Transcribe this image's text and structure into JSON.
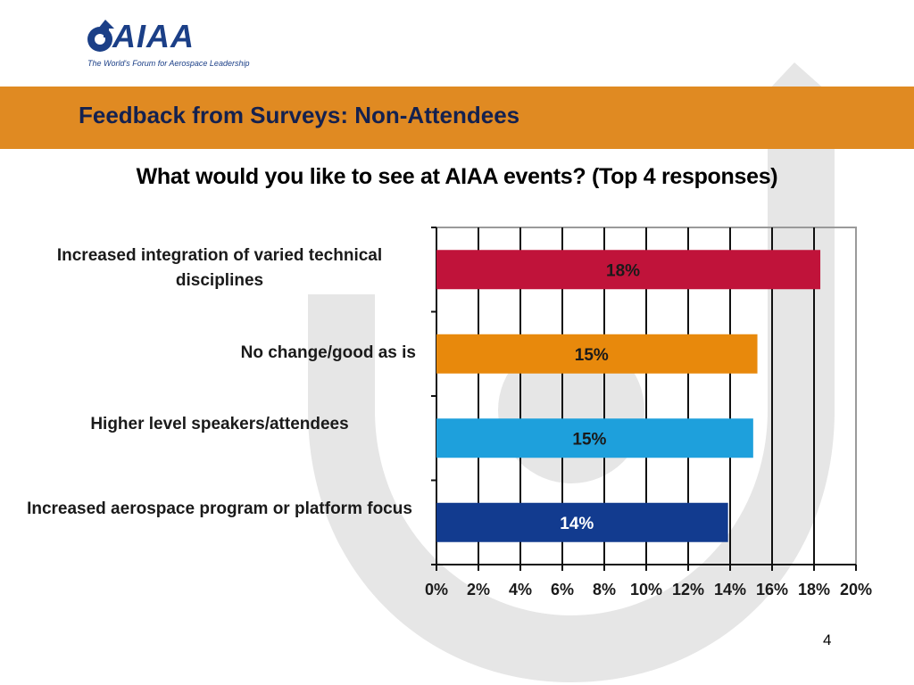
{
  "header": {
    "logo_text": "AIAA",
    "tagline": "The World's Forum for Aerospace Leadership"
  },
  "slide": {
    "title": "Feedback from Surveys: Non-Attendees",
    "subtitle": "What would you like to see at AIAA events? (Top 4 responses)",
    "page_number": "4"
  },
  "colors": {
    "band": "#e08a22",
    "title": "#14214f",
    "watermark": "#e6e6e6"
  },
  "chart_data": {
    "type": "bar",
    "orientation": "horizontal",
    "categories": [
      "Increased integration of varied technical disciplines",
      "No change/good as is",
      "Higher level speakers/attendees",
      "Increased aerospace program or platform focus"
    ],
    "values": [
      18.3,
      15.3,
      15.1,
      13.9
    ],
    "data_labels": [
      "18%",
      "15%",
      "15%",
      "14%"
    ],
    "bar_colors": [
      "#c0133a",
      "#e8890c",
      "#1ea0dc",
      "#123b8f"
    ],
    "label_colors": [
      "#1a1a1a",
      "#1a1a1a",
      "#1a1a1a",
      "#ffffff"
    ],
    "xlim": [
      0,
      20
    ],
    "ticks": [
      "0%",
      "2%",
      "4%",
      "6%",
      "8%",
      "10%",
      "12%",
      "14%",
      "16%",
      "18%",
      "20%"
    ],
    "grid": true,
    "legend": "none",
    "title": "",
    "xlabel": "",
    "ylabel": ""
  }
}
